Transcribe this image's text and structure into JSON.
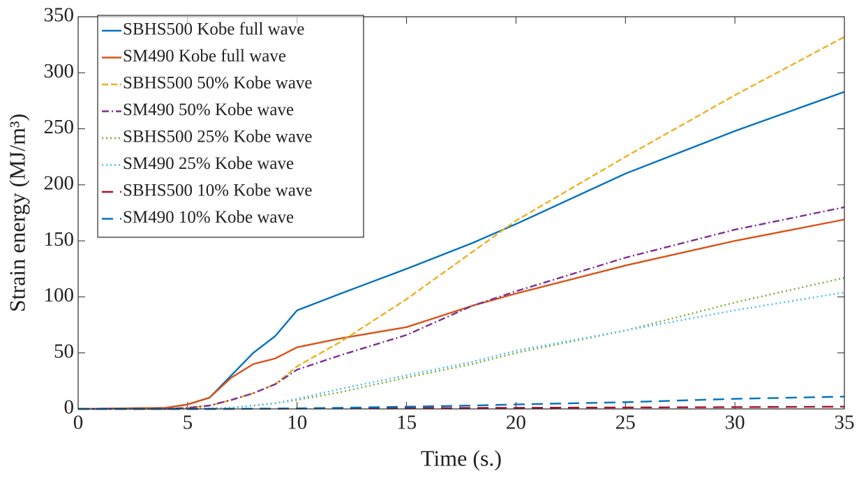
{
  "chart_data": {
    "type": "line",
    "x_label": "Time (s.)",
    "y_label": "Strain energy (MJ/m³)",
    "x": [
      0,
      4,
      5,
      6,
      7,
      8,
      9,
      10,
      12,
      15,
      18,
      20,
      25,
      30,
      35
    ],
    "xlim": [
      0,
      35
    ],
    "ylim": [
      0,
      350
    ],
    "xticks": [
      0,
      5,
      10,
      15,
      20,
      25,
      30,
      35
    ],
    "yticks": [
      0,
      50,
      100,
      150,
      200,
      250,
      300,
      350
    ],
    "grid": false,
    "legend_position": "upper-left",
    "series": [
      {
        "name": "SBHS500 Kobe full wave",
        "color": "#0072BD",
        "line_style": "solid",
        "values": [
          0,
          1,
          4,
          10,
          30,
          50,
          65,
          88,
          103,
          125,
          148,
          165,
          210,
          248,
          283
        ]
      },
      {
        "name": "SM490 Kobe full wave",
        "color": "#D95319",
        "line_style": "solid",
        "values": [
          0,
          1,
          4,
          10,
          28,
          40,
          45,
          55,
          63,
          73,
          92,
          103,
          128,
          150,
          169
        ]
      },
      {
        "name": "SBHS500 50% Kobe wave",
        "color": "#EDB120",
        "line_style": "dashed",
        "values": [
          0,
          0,
          1,
          3,
          8,
          14,
          22,
          38,
          60,
          98,
          140,
          168,
          225,
          280,
          332
        ]
      },
      {
        "name": "SM490 50% Kobe wave",
        "color": "#7E2F8E",
        "line_style": "dash-dot",
        "values": [
          0,
          0,
          1,
          3,
          8,
          14,
          22,
          35,
          48,
          66,
          92,
          105,
          135,
          160,
          180
        ]
      },
      {
        "name": "SBHS500 25% Kobe wave",
        "color": "#77AC30",
        "line_style": "dotted",
        "values": [
          0,
          0,
          0,
          0.5,
          1,
          3,
          5,
          8,
          15,
          28,
          40,
          50,
          70,
          95,
          117
        ]
      },
      {
        "name": "SM490 25% Kobe wave",
        "color": "#4DBEEE",
        "line_style": "dotted",
        "values": [
          0,
          0,
          0,
          0.5,
          1,
          3,
          5,
          9,
          18,
          30,
          42,
          52,
          70,
          88,
          104
        ]
      },
      {
        "name": "SBHS500 10% Kobe wave",
        "color": "#A2142F",
        "line_style": "long-dash",
        "values": [
          0,
          0,
          0,
          0,
          0,
          0.1,
          0.2,
          0.3,
          0.5,
          0.7,
          0.9,
          1,
          1.3,
          1.6,
          2
        ]
      },
      {
        "name": "SM490 10% Kobe wave",
        "color": "#0072BD",
        "line_style": "long-dash",
        "values": [
          0,
          0,
          0,
          0,
          0.1,
          0.2,
          0.3,
          0.5,
          1,
          2,
          3,
          4,
          6,
          9,
          11
        ]
      }
    ]
  }
}
